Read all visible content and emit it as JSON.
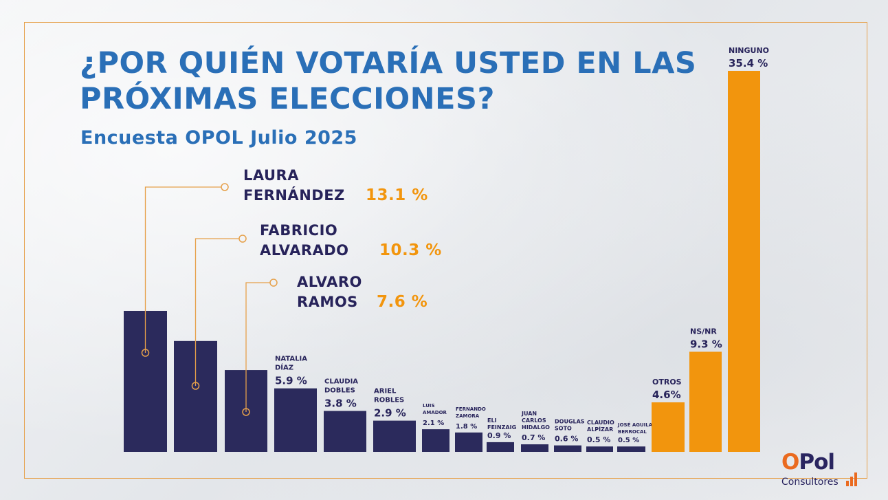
{
  "title": "¿POR QUIÉN VOTARÍA USTED EN LAS PRÓXIMAS ELECCIONES?",
  "subtitle": "Encuesta OPOL Julio 2025",
  "colors": {
    "candidate": "#2b2a5c",
    "other": "#f2950d",
    "title": "#2a6fb7",
    "frame": "#e6a04a"
  },
  "callouts": [
    {
      "line1": "LAURA",
      "line2": "FERNÁNDEZ",
      "pct": "13.1 %"
    },
    {
      "line1": "FABRICIO",
      "line2": "ALVARADO",
      "pct": "10.3 %"
    },
    {
      "line1": "ALVARO",
      "line2": "RAMOS",
      "pct": "7.6 %"
    }
  ],
  "chart_data": {
    "type": "bar",
    "title": "¿POR QUIÉN VOTARÍA USTED EN LAS PRÓXIMAS ELECCIONES?",
    "subtitle": "Encuesta OPOL Julio 2025",
    "ylim": [
      0,
      35.4
    ],
    "bars": [
      {
        "name": "LAURA FERNÁNDEZ",
        "label": [],
        "value": 13.1,
        "pct": "",
        "group": "candidate"
      },
      {
        "name": "FABRICIO ALVARADO",
        "label": [],
        "value": 10.3,
        "pct": "",
        "group": "candidate"
      },
      {
        "name": "ALVARO RAMOS",
        "label": [],
        "value": 7.6,
        "pct": "",
        "group": "candidate"
      },
      {
        "name": "NATALIA DÍAZ",
        "label": [
          "NATALIA",
          "DÍAZ"
        ],
        "value": 5.9,
        "pct": "5.9 %",
        "group": "candidate",
        "size": "m"
      },
      {
        "name": "CLAUDIA DOBLES",
        "label": [
          "CLAUDIA",
          "DOBLES"
        ],
        "value": 3.8,
        "pct": "3.8 %",
        "group": "candidate",
        "size": "m"
      },
      {
        "name": "ARIEL ROBLES",
        "label": [
          "ARIEL",
          "ROBLES"
        ],
        "value": 2.9,
        "pct": "2.9 %",
        "group": "candidate",
        "size": "m"
      },
      {
        "name": "LUIS AMADOR",
        "label": [
          "LUIS",
          "AMADOR"
        ],
        "value": 2.1,
        "pct": "2.1 %",
        "group": "candidate",
        "size": "xs"
      },
      {
        "name": "FERNANDO ZAMORA",
        "label": [
          "FERNANDO",
          "ZAMORA"
        ],
        "value": 1.8,
        "pct": "1.8 %",
        "group": "candidate",
        "size": "xs"
      },
      {
        "name": "ELI FEINZAIG",
        "label": [
          "ELI",
          "FEINZAIG"
        ],
        "value": 0.9,
        "pct": "0.9 %",
        "group": "candidate",
        "size": "s",
        "inline_pct": true
      },
      {
        "name": "JUAN CARLOS HIDALGO",
        "label": [
          "JUAN",
          "CARLOS",
          "HIDALGO"
        ],
        "value": 0.7,
        "pct": "0.7 %",
        "group": "candidate",
        "size": "s"
      },
      {
        "name": "DOUGLAS SOTO",
        "label": [
          "DOUGLAS",
          "SOTO"
        ],
        "value": 0.6,
        "pct": "0.6 %",
        "group": "candidate",
        "size": "s"
      },
      {
        "name": "CLAUDIO ALPÍZAR",
        "label": [
          "CLAUDIO",
          "ALPÍZAR"
        ],
        "value": 0.5,
        "pct": "0.5 %",
        "group": "candidate",
        "size": "s"
      },
      {
        "name": "JOSÉ AGUILAR BERROCAL",
        "label": [
          "JOSÉ AGUILAR",
          "BERROCAL"
        ],
        "value": 0.5,
        "pct": "0.5 %",
        "group": "candidate",
        "size": "xs",
        "inline_pct": true
      },
      {
        "name": "OTROS",
        "label": [
          "OTROS"
        ],
        "value": 4.6,
        "pct": "4.6%",
        "group": "other",
        "size": "l"
      },
      {
        "name": "NS/NR",
        "label": [
          "NS/NR"
        ],
        "value": 9.3,
        "pct": "9.3 %",
        "group": "other",
        "size": "l"
      },
      {
        "name": "NINGUNO",
        "label": [
          "NINGUNO"
        ],
        "value": 35.4,
        "pct": "35.4 %",
        "group": "other",
        "size": "l"
      }
    ]
  },
  "logo": {
    "brand_o": "O",
    "brand_rest": "Pol",
    "tagline": "Consultores"
  }
}
